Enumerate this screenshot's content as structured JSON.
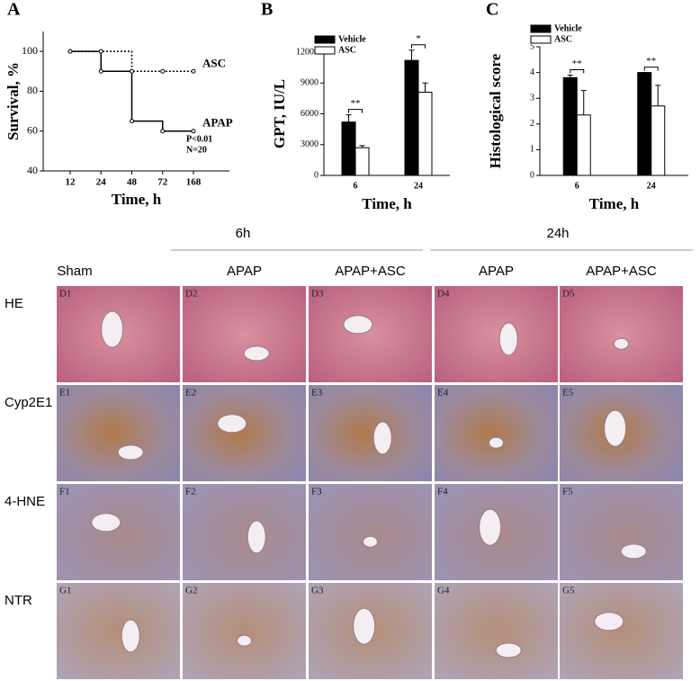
{
  "chart_data": [
    {
      "type": "line",
      "panel": "A",
      "x_label": "Time, h",
      "y_label": "Survival, %",
      "categories": [
        "12",
        "24",
        "48",
        "72",
        "168"
      ],
      "series": [
        {
          "name": "APAP",
          "color": "#000000",
          "style": "solid",
          "values": [
            100,
            90,
            65,
            60,
            60
          ]
        },
        {
          "name": "ASC",
          "color": "#000000",
          "style": "dotted",
          "values": [
            100,
            100,
            90,
            90,
            90
          ]
        }
      ],
      "annotations": [
        "P<0.01",
        "N=20"
      ],
      "ylim": [
        40,
        110
      ],
      "yticks": [
        40,
        60,
        80,
        100
      ]
    },
    {
      "type": "bar",
      "panel": "B",
      "x_label": "Time, h",
      "y_label": "GPT, IU/L",
      "categories": [
        "6",
        "24"
      ],
      "series": [
        {
          "name": "Vehicle",
          "color": "#000000",
          "values": [
            5200,
            11200
          ],
          "errors": [
            700,
            1000
          ]
        },
        {
          "name": "ASC",
          "color": "#ffffff",
          "values": [
            2700,
            8100
          ],
          "errors": [
            200,
            900
          ]
        }
      ],
      "significance": [
        "**",
        "*"
      ],
      "ylim": [
        0,
        12000
      ],
      "yticks": [
        0,
        3000,
        6000,
        9000,
        12000
      ]
    },
    {
      "type": "bar",
      "panel": "C",
      "x_label": "Time, h",
      "y_label": "Histological score",
      "categories": [
        "6",
        "24"
      ],
      "series": [
        {
          "name": "Vehicle",
          "color": "#000000",
          "values": [
            3.8,
            4.0
          ],
          "errors": [
            0.1,
            0
          ]
        },
        {
          "name": "ASC",
          "color": "#ffffff",
          "values": [
            2.35,
            2.7
          ],
          "errors": [
            0.95,
            0.8
          ]
        }
      ],
      "significance": [
        "**",
        "**"
      ],
      "ylim": [
        0,
        5
      ],
      "yticks": [
        0,
        1,
        2,
        3,
        4,
        5
      ]
    }
  ],
  "micrographs": {
    "group_headers": [
      "6h",
      "24h"
    ],
    "columns": [
      "Sham",
      "APAP",
      "APAP+ASC",
      "APAP",
      "APAP+ASC"
    ],
    "rows": [
      "HE",
      "Cyp2E1",
      "4-HNE",
      "NTR"
    ],
    "panels": [
      [
        "D1",
        "D2",
        "D3",
        "D4",
        "D5"
      ],
      [
        "E1",
        "E2",
        "E3",
        "E4",
        "E5"
      ],
      [
        "F1",
        "F2",
        "F3",
        "F4",
        "F5"
      ],
      [
        "G1",
        "G2",
        "G3",
        "G4",
        "G5"
      ]
    ]
  }
}
